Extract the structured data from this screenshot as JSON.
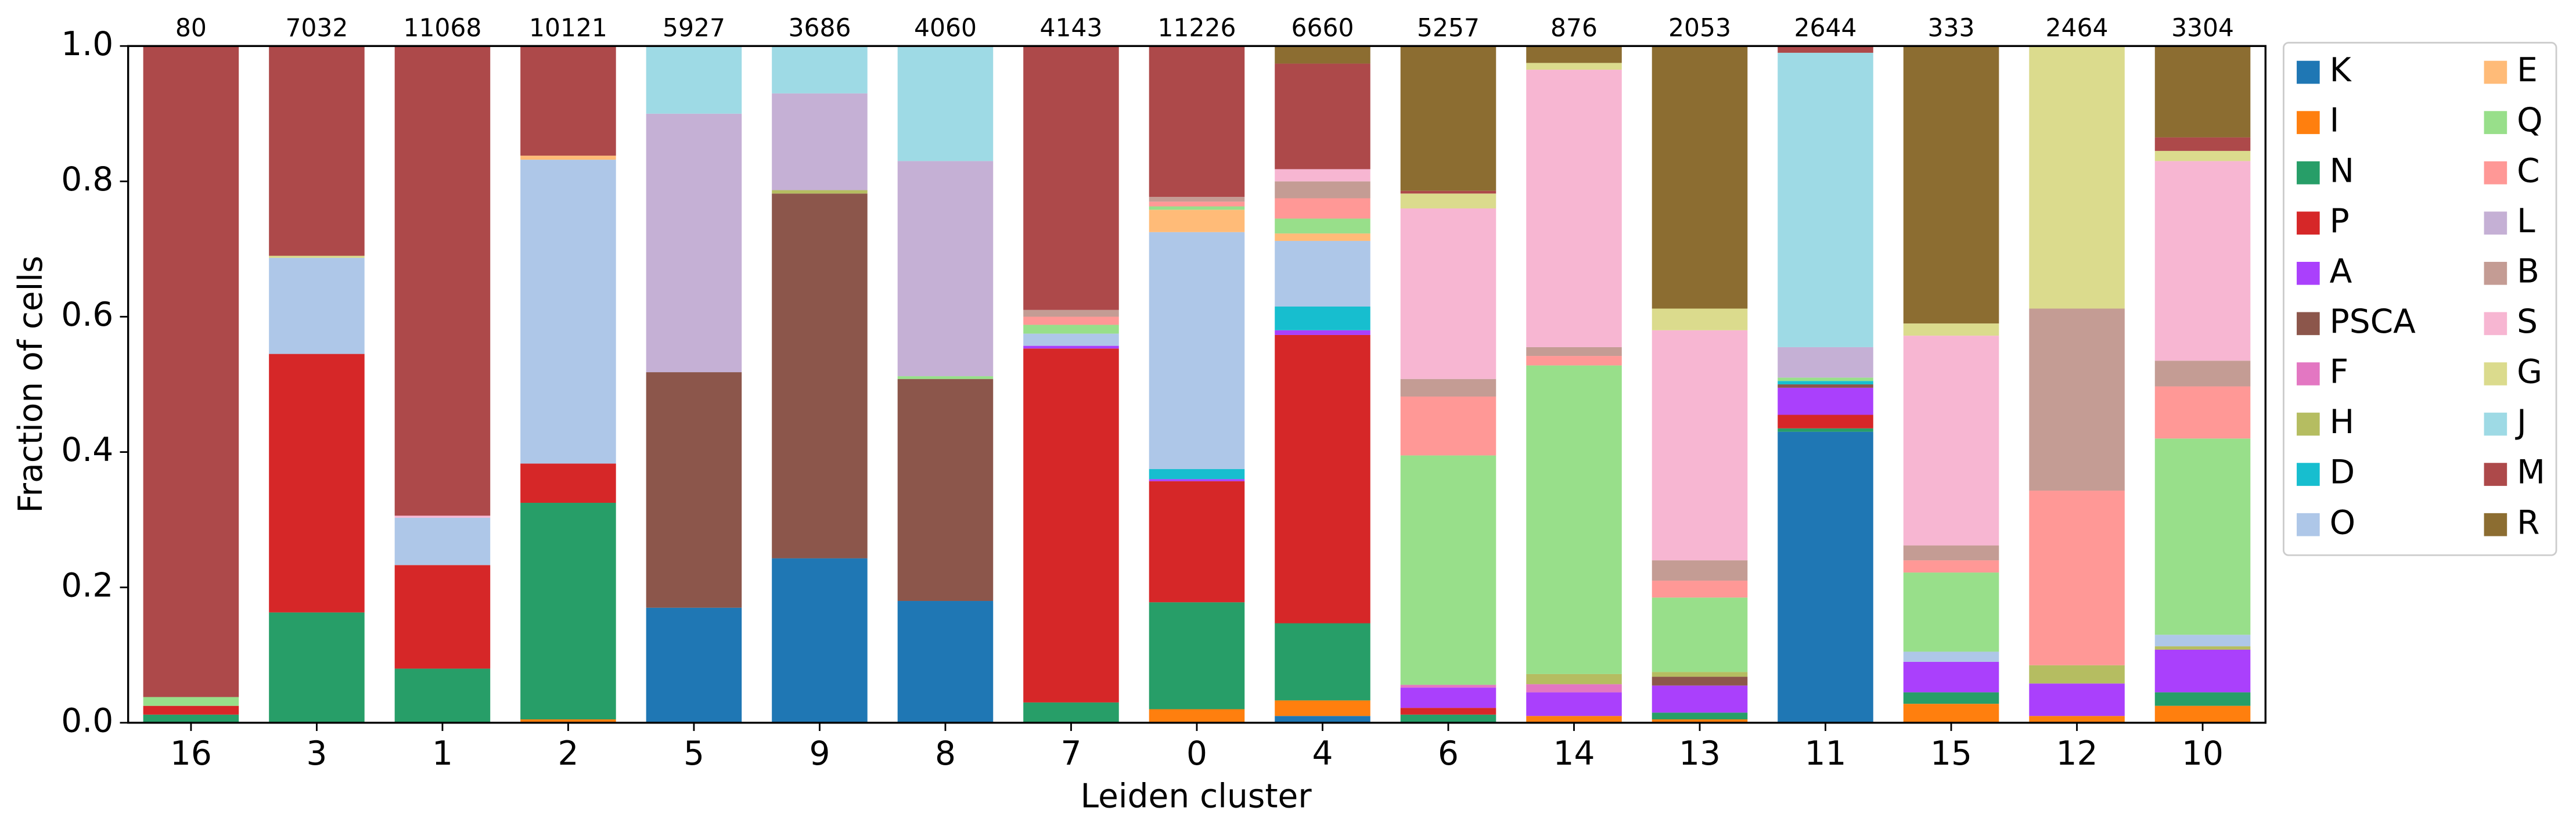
{
  "chart_data": {
    "type": "stacked-bar",
    "x_label": "Leiden cluster",
    "y_label": "Fraction of cells",
    "categories": [
      "16",
      "3",
      "1",
      "2",
      "5",
      "9",
      "8",
      "7",
      "0",
      "4",
      "6",
      "14",
      "13",
      "11",
      "15",
      "12",
      "10"
    ],
    "counts": [
      80,
      7032,
      11068,
      10121,
      5927,
      3686,
      4060,
      4143,
      11226,
      6660,
      5257,
      876,
      2053,
      2644,
      333,
      2464,
      3304
    ],
    "ylim": [
      0,
      1
    ],
    "yticks": [
      {
        "value": 0,
        "label": "0.0"
      },
      {
        "value": 0.2,
        "label": "0.2"
      },
      {
        "value": 0.4,
        "label": "0.4"
      },
      {
        "value": 0.6,
        "label": "0.6"
      },
      {
        "value": 0.8,
        "label": "0.8"
      },
      {
        "value": 1,
        "label": "1.0"
      }
    ],
    "series": [
      {
        "name": "K",
        "color": "#1f77b4",
        "values": [
          0,
          0,
          0,
          0,
          0.17,
          0.243,
          0.18,
          0,
          0,
          0.01,
          0,
          0,
          0,
          0.43,
          0,
          0,
          0
        ]
      },
      {
        "name": "I",
        "color": "#ff7f0e",
        "values": [
          0,
          0,
          0,
          0.005,
          0,
          0,
          0,
          0,
          0.02,
          0.023,
          0,
          0.01,
          0.005,
          0,
          0.028,
          0.01,
          0.025
        ]
      },
      {
        "name": "N",
        "color": "#279e68",
        "values": [
          0.012,
          0.163,
          0.08,
          0.32,
          0,
          0,
          0,
          0.03,
          0.158,
          0.114,
          0.012,
          0,
          0.01,
          0.005,
          0.017,
          0,
          0.02
        ]
      },
      {
        "name": "P",
        "color": "#d62728",
        "values": [
          0.013,
          0.382,
          0.153,
          0.058,
          0,
          0,
          0,
          0.523,
          0.179,
          0.426,
          0.01,
          0,
          0,
          0.02,
          0,
          0,
          0
        ]
      },
      {
        "name": "A",
        "color": "#aa40fc",
        "values": [
          0,
          0,
          0,
          0,
          0,
          0,
          0,
          0.004,
          0.003,
          0.007,
          0.03,
          0.035,
          0.04,
          0.04,
          0.045,
          0.048,
          0.063
        ]
      },
      {
        "name": "PSCA",
        "color": "#8c564b",
        "values": [
          0,
          0,
          0,
          0,
          0.348,
          0.539,
          0.328,
          0,
          0,
          0,
          0,
          0,
          0.013,
          0.005,
          0,
          0,
          0
        ]
      },
      {
        "name": "F",
        "color": "#e377c2",
        "values": [
          0,
          0,
          0,
          0,
          0,
          0,
          0,
          0,
          0,
          0,
          0.004,
          0.012,
          0,
          0,
          0,
          0,
          0
        ]
      },
      {
        "name": "H",
        "color": "#b5bd61",
        "values": [
          0,
          0,
          0,
          0,
          0,
          0.005,
          0,
          0,
          0,
          0,
          0,
          0.015,
          0.007,
          0,
          0,
          0.027,
          0.005
        ]
      },
      {
        "name": "D",
        "color": "#17becf",
        "values": [
          0,
          0,
          0,
          0,
          0,
          0,
          0,
          0,
          0.015,
          0.035,
          0,
          0,
          0,
          0.005,
          0,
          0,
          0
        ]
      },
      {
        "name": "O",
        "color": "#aec7e8",
        "values": [
          0,
          0.142,
          0.07,
          0.449,
          0,
          0,
          0,
          0.018,
          0.35,
          0.097,
          0,
          0,
          0,
          0,
          0.015,
          0,
          0.017
        ]
      },
      {
        "name": "E",
        "color": "#ffbb78",
        "values": [
          0,
          0,
          0,
          0.006,
          0,
          0,
          0,
          0,
          0.033,
          0.011,
          0,
          0,
          0,
          0,
          0,
          0,
          0
        ]
      },
      {
        "name": "Q",
        "color": "#98df8a",
        "values": [
          0.013,
          0,
          0,
          0,
          0,
          0,
          0.004,
          0.013,
          0.005,
          0.022,
          0.339,
          0.456,
          0.11,
          0.005,
          0.117,
          0,
          0.29
        ]
      },
      {
        "name": "C",
        "color": "#ff9896",
        "values": [
          0,
          0,
          0,
          0,
          0,
          0,
          0,
          0.012,
          0.007,
          0.03,
          0.087,
          0.014,
          0.025,
          0,
          0.018,
          0.258,
          0.077
        ]
      },
      {
        "name": "L",
        "color": "#c5b0d5",
        "values": [
          0,
          0,
          0,
          0,
          0.382,
          0.143,
          0.318,
          0,
          0,
          0,
          0,
          0,
          0,
          0.045,
          0,
          0,
          0
        ]
      },
      {
        "name": "B",
        "color": "#c49c94",
        "values": [
          0,
          0,
          0,
          0,
          0,
          0,
          0,
          0.01,
          0.007,
          0.025,
          0.026,
          0.013,
          0.03,
          0,
          0.022,
          0.269,
          0.038
        ]
      },
      {
        "name": "S",
        "color": "#f7b6d2",
        "values": [
          0,
          0,
          0.003,
          0,
          0,
          0,
          0,
          0,
          0,
          0.018,
          0.252,
          0.41,
          0.34,
          0,
          0.31,
          0,
          0.295
        ]
      },
      {
        "name": "G",
        "color": "#dbdb8d",
        "values": [
          0,
          0.003,
          0,
          0,
          0,
          0,
          0,
          0,
          0,
          0,
          0.022,
          0.01,
          0.032,
          0,
          0.018,
          0.388,
          0.015
        ]
      },
      {
        "name": "J",
        "color": "#9edae5",
        "values": [
          0,
          0,
          0,
          0,
          0.1,
          0.07,
          0.17,
          0,
          0,
          0,
          0,
          0,
          0,
          0.435,
          0,
          0,
          0
        ]
      },
      {
        "name": "M",
        "color": "#ad494a",
        "values": [
          0.962,
          0.31,
          0.694,
          0.162,
          0,
          0,
          0,
          0.39,
          0.223,
          0.156,
          0.004,
          0,
          0,
          0.01,
          0,
          0,
          0.02
        ]
      },
      {
        "name": "R",
        "color": "#8c6d31",
        "values": [
          0,
          0,
          0,
          0,
          0,
          0,
          0,
          0,
          0,
          0.025,
          0.214,
          0.025,
          0.388,
          0,
          0.41,
          0,
          0.135
        ]
      }
    ],
    "legend": "outside-right"
  }
}
